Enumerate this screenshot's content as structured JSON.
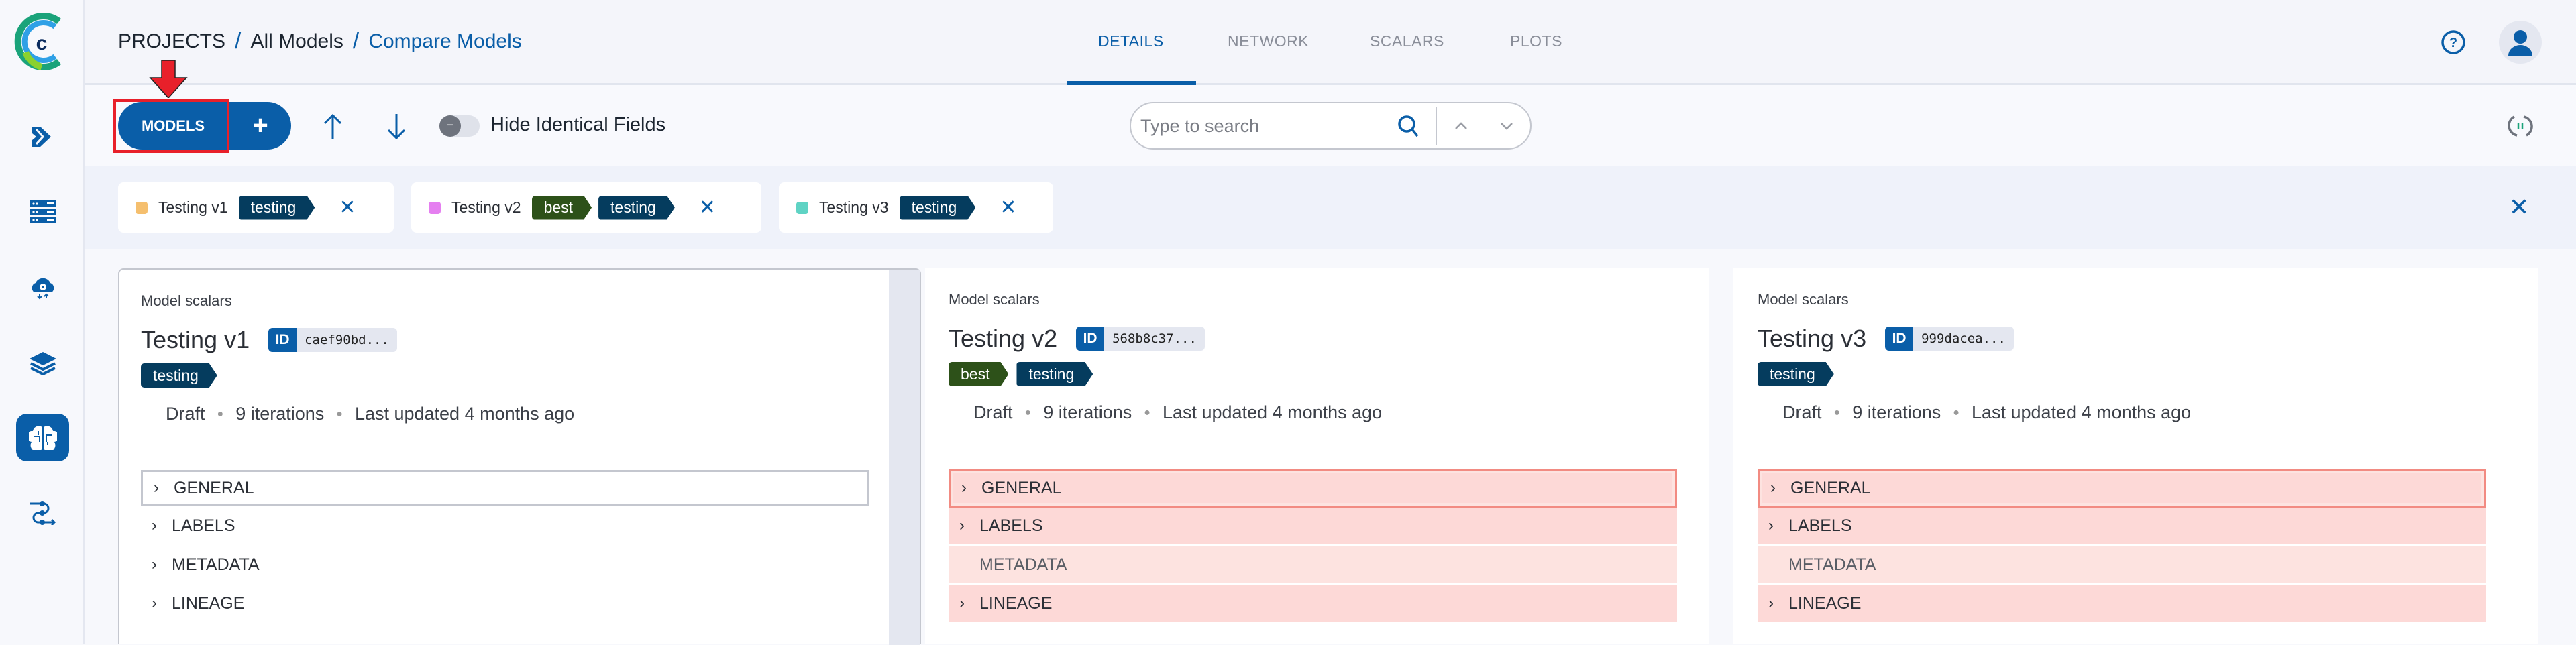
{
  "colors": {
    "primary": "#0a5ea8",
    "tag_testing": "#053c5e",
    "tag_best": "#2d5119",
    "diff_bg": "#fdd9d7",
    "diff_border": "#f28b82",
    "highlight_box": "#e8202a"
  },
  "sidebar": {
    "items": [
      {
        "name": "pipelines",
        "icon": "double-chevron-icon"
      },
      {
        "name": "datasets",
        "icon": "server-icon"
      },
      {
        "name": "orchestration",
        "icon": "cloud-gear-icon"
      },
      {
        "name": "layers",
        "icon": "layers-icon"
      },
      {
        "name": "models",
        "icon": "brain-icon",
        "active": true
      },
      {
        "name": "workflows",
        "icon": "flow-icon"
      }
    ]
  },
  "header": {
    "breadcrumb": [
      "PROJECTS",
      "All Models",
      "Compare Models"
    ],
    "separator": "/",
    "tabs": [
      {
        "label": "DETAILS",
        "active": true
      },
      {
        "label": "NETWORK"
      },
      {
        "label": "SCALARS"
      },
      {
        "label": "PLOTS"
      }
    ]
  },
  "toolbar": {
    "models_label": "MODELS",
    "add_label": "+",
    "hide_identical_label": "Hide Identical Fields",
    "hide_identical_on": false,
    "search_placeholder": "Type to search",
    "search_value": ""
  },
  "compared": [
    {
      "name": "Testing v1",
      "color": "#f5bf6e",
      "tags": [
        "testing"
      ]
    },
    {
      "name": "Testing v2",
      "color": "#e57ff0",
      "tags": [
        "best",
        "testing"
      ]
    },
    {
      "name": "Testing v3",
      "color": "#5fd3c4",
      "tags": [
        "testing"
      ]
    }
  ],
  "cards": [
    {
      "subtitle": "Model scalars",
      "title": "Testing v1",
      "id_label": "ID",
      "id": "caef90bd...",
      "tags": [
        "testing"
      ],
      "status": "Draft",
      "iterations": "9 iterations",
      "updated": "Last updated 4 months ago",
      "sections": [
        "GENERAL",
        "LABELS",
        "METADATA",
        "LINEAGE"
      ]
    },
    {
      "subtitle": "Model scalars",
      "title": "Testing v2",
      "id_label": "ID",
      "id": "568b8c37...",
      "tags": [
        "best",
        "testing"
      ],
      "status": "Draft",
      "iterations": "9 iterations",
      "updated": "Last updated 4 months ago",
      "sections": [
        "GENERAL",
        "LABELS",
        "METADATA",
        "LINEAGE"
      ]
    },
    {
      "subtitle": "Model scalars",
      "title": "Testing v3",
      "id_label": "ID",
      "id": "999dacea...",
      "tags": [
        "testing"
      ],
      "status": "Draft",
      "iterations": "9 iterations",
      "updated": "Last updated 4 months ago",
      "sections": [
        "GENERAL",
        "LABELS",
        "METADATA",
        "LINEAGE"
      ]
    }
  ]
}
